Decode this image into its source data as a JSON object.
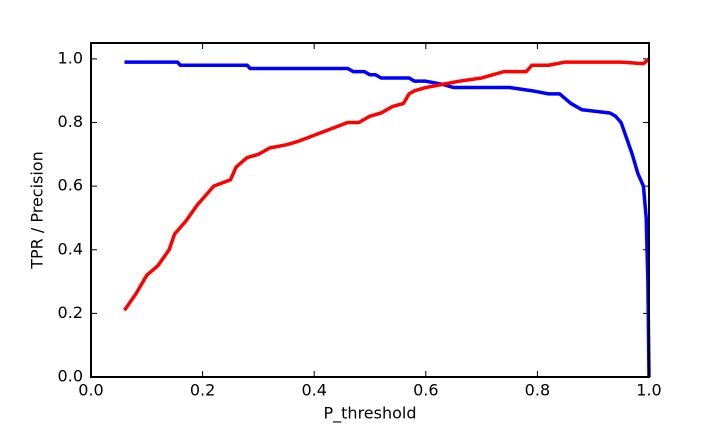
{
  "chart_data": {
    "type": "line",
    "xlabel": "P_threshold",
    "ylabel": "TPR / Precision",
    "xlim": [
      0,
      1
    ],
    "ylim": [
      0,
      1.05
    ],
    "xticks": [
      {
        "value": 0,
        "label": "0.0"
      },
      {
        "value": 0.2,
        "label": "0.2"
      },
      {
        "value": 0.4,
        "label": "0.4"
      },
      {
        "value": 0.6,
        "label": "0.6"
      },
      {
        "value": 0.8,
        "label": "0.8"
      },
      {
        "value": 1,
        "label": "1.0"
      }
    ],
    "yticks": [
      {
        "value": 0,
        "label": "0.0"
      },
      {
        "value": 0.2,
        "label": "0.2"
      },
      {
        "value": 0.4,
        "label": "0.4"
      },
      {
        "value": 0.6,
        "label": "0.6"
      },
      {
        "value": 0.8,
        "label": "0.8"
      },
      {
        "value": 1,
        "label": "1.0"
      }
    ],
    "grid": false,
    "series": [
      {
        "color": "#0000ff",
        "x": [
          0.06,
          0.155,
          0.16,
          0.28,
          0.285,
          0.46,
          0.47,
          0.49,
          0.5,
          0.51,
          0.52,
          0.57,
          0.58,
          0.6,
          0.63,
          0.65,
          0.75,
          0.79,
          0.82,
          0.84,
          0.86,
          0.88,
          0.93,
          0.94,
          0.95,
          0.96,
          0.97,
          0.98,
          0.99,
          0.995,
          0.998,
          1.0
        ],
        "values": [
          0.99,
          0.99,
          0.98,
          0.98,
          0.97,
          0.97,
          0.96,
          0.96,
          0.95,
          0.95,
          0.94,
          0.94,
          0.93,
          0.93,
          0.92,
          0.91,
          0.91,
          0.9,
          0.89,
          0.89,
          0.86,
          0.84,
          0.83,
          0.82,
          0.8,
          0.75,
          0.7,
          0.64,
          0.6,
          0.5,
          0.3,
          0.0
        ]
      },
      {
        "color": "#ff0000",
        "x": [
          0.06,
          0.08,
          0.1,
          0.12,
          0.14,
          0.15,
          0.17,
          0.19,
          0.21,
          0.22,
          0.25,
          0.26,
          0.28,
          0.3,
          0.32,
          0.35,
          0.37,
          0.4,
          0.43,
          0.46,
          0.48,
          0.5,
          0.52,
          0.54,
          0.56,
          0.57,
          0.58,
          0.6,
          0.63,
          0.66,
          0.7,
          0.74,
          0.78,
          0.79,
          0.82,
          0.85,
          0.95,
          0.99,
          1.0
        ],
        "values": [
          0.21,
          0.26,
          0.32,
          0.35,
          0.4,
          0.45,
          0.49,
          0.54,
          0.58,
          0.6,
          0.62,
          0.66,
          0.69,
          0.7,
          0.72,
          0.73,
          0.74,
          0.76,
          0.78,
          0.8,
          0.8,
          0.82,
          0.83,
          0.85,
          0.86,
          0.89,
          0.9,
          0.91,
          0.92,
          0.93,
          0.94,
          0.96,
          0.96,
          0.98,
          0.98,
          0.99,
          0.99,
          0.985,
          1.0
        ]
      }
    ]
  }
}
